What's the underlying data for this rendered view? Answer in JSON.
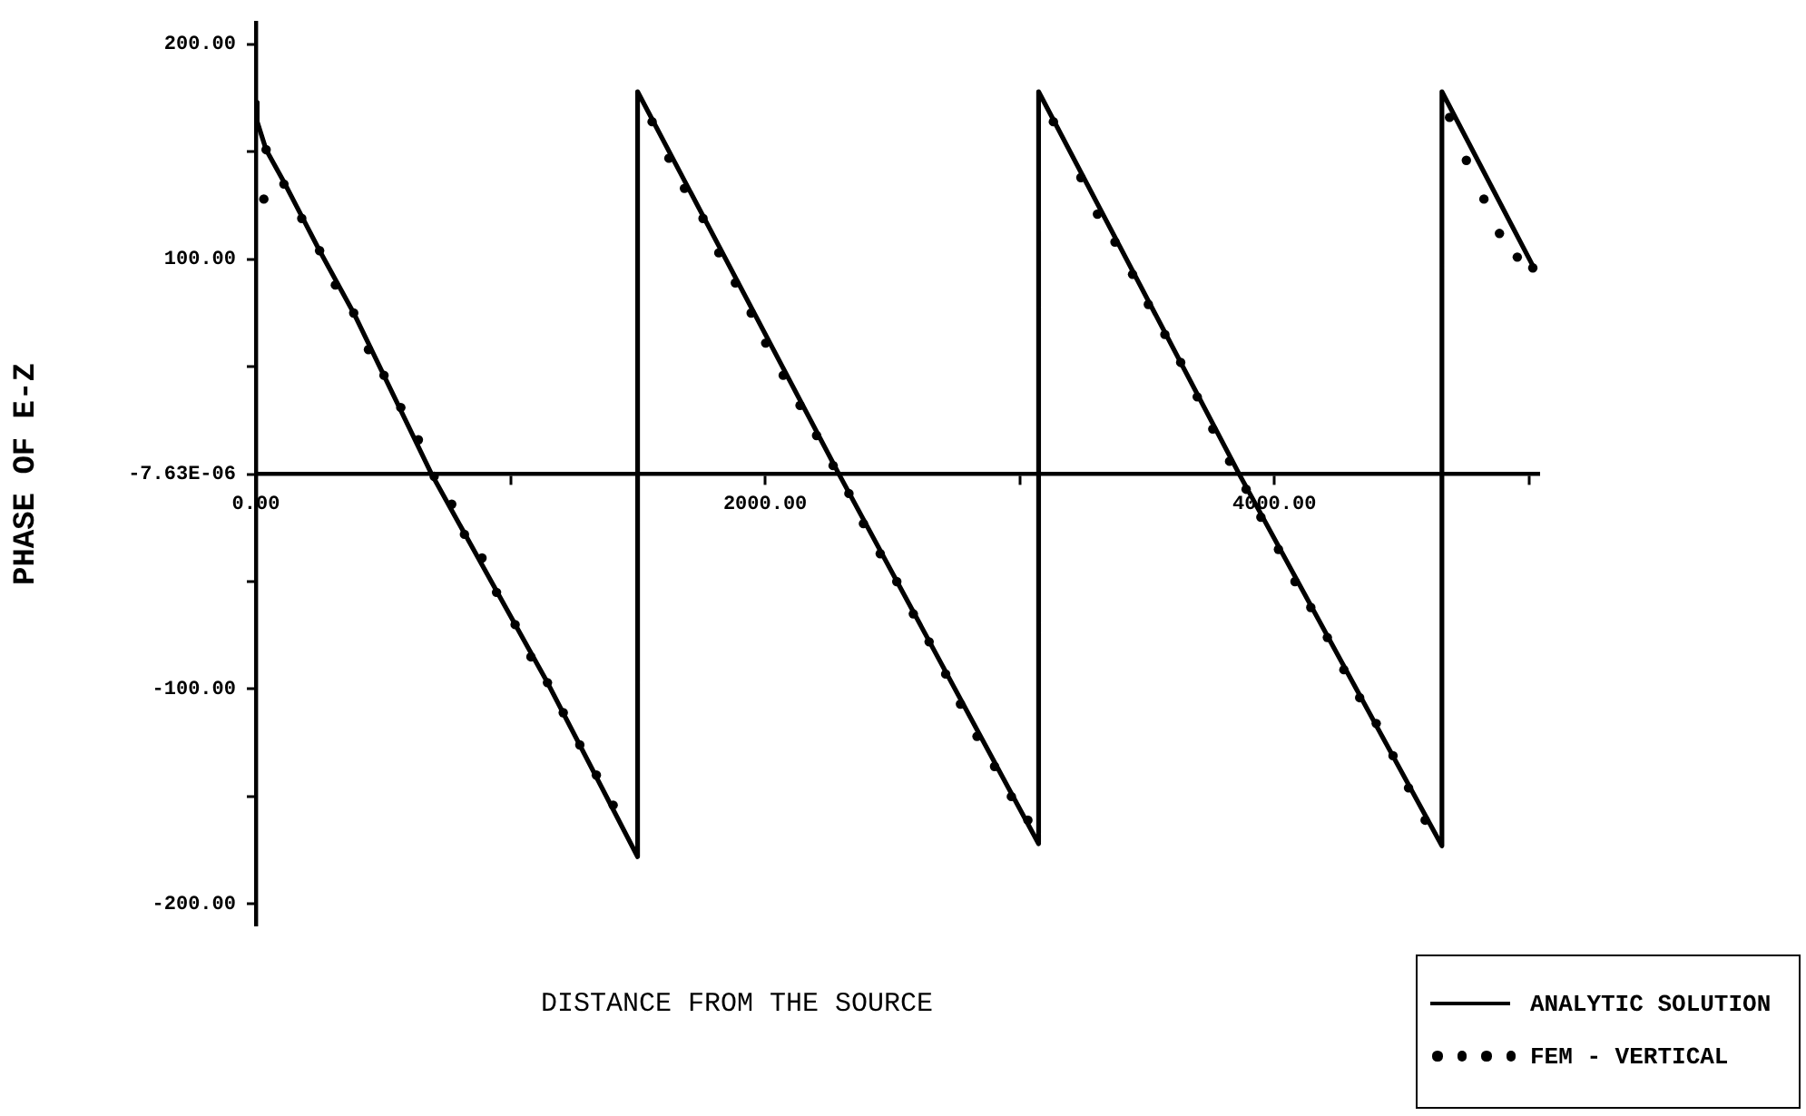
{
  "chart_data": {
    "type": "line",
    "xlabel": "DISTANCE FROM THE SOURCE",
    "ylabel": "PHASE OF E-Z",
    "xlim": [
      0,
      5040
    ],
    "xticks": [
      {
        "value": 0,
        "label": "0.00"
      },
      {
        "value": 1000,
        "label": null
      },
      {
        "value": 2000,
        "label": "2000.00"
      },
      {
        "value": 3000,
        "label": null
      },
      {
        "value": 4000,
        "label": "4000.00"
      },
      {
        "value": 5000,
        "label": null
      }
    ],
    "ylim": [
      -210,
      210
    ],
    "yticks": [
      {
        "value": -200,
        "label": "-200.00"
      },
      {
        "value": -150,
        "label": null
      },
      {
        "value": -100,
        "label": "-100.00"
      },
      {
        "value": -50,
        "label": null
      },
      {
        "value": -7.63e-06,
        "label": "-7.63E-06"
      },
      {
        "value": 50,
        "label": null
      },
      {
        "value": 100,
        "label": "100.00"
      },
      {
        "value": 150,
        "label": null
      },
      {
        "value": 200,
        "label": "200.00"
      }
    ],
    "grid": false,
    "legend": "bottom right",
    "series": [
      {
        "name": "ANALYTIC SOLUTION",
        "type": "line",
        "color": "#000000",
        "line_style": "solid",
        "x": [
          0,
          5,
          40,
          110,
          180,
          250,
          384,
          690,
          1145,
          1499,
          1499,
          2290,
          3074,
          3074,
          3862,
          4658,
          4658,
          5015
        ],
        "values": [
          173,
          164,
          151,
          136,
          120,
          104,
          75,
          0,
          -97,
          -178,
          178,
          0,
          -172,
          178,
          0,
          -173,
          178,
          97
        ]
      },
      {
        "name": "FEM - VERTICAL",
        "type": "scatter",
        "color": "#000000",
        "marker": "circle",
        "x": [
          31,
          40,
          110,
          180,
          250,
          312,
          384,
          442,
          503,
          569,
          638,
          700,
          769,
          819,
          888,
          945,
          1018,
          1080,
          1145,
          1207,
          1272,
          1337,
          1403,
          1556,
          1622,
          1683,
          1756,
          1818,
          1883,
          1945,
          2002,
          2071,
          2137,
          2202,
          2267,
          2329,
          2386,
          2452,
          2517,
          2582,
          2644,
          2709,
          2767,
          2832,
          2901,
          2967,
          3032,
          3132,
          3240,
          3305,
          3374,
          3443,
          3505,
          3570,
          3632,
          3697,
          3758,
          3824,
          3889,
          3947,
          4016,
          4081,
          4143,
          4208,
          4273,
          4335,
          4400,
          4466,
          4527,
          4592,
          4688,
          4754,
          4823,
          4884,
          4954,
          5015
        ],
        "values": [
          128,
          151,
          135,
          119,
          104,
          88,
          75,
          58,
          46,
          31,
          16,
          -1,
          -14,
          -28,
          -39,
          -55,
          -70,
          -85,
          -97,
          -111,
          -126,
          -140,
          -154,
          164,
          147,
          133,
          119,
          103,
          89,
          75,
          61,
          46,
          32,
          18,
          4,
          -9,
          -23,
          -37,
          -50,
          -65,
          -78,
          -93,
          -107,
          -122,
          -136,
          -150,
          -161,
          164,
          138,
          121,
          108,
          93,
          79,
          65,
          52,
          36,
          21,
          6,
          -7,
          -20,
          -35,
          -50,
          -62,
          -76,
          -91,
          -104,
          -116,
          -131,
          -146,
          -161,
          166,
          146,
          128,
          112,
          101,
          96
        ]
      }
    ]
  }
}
